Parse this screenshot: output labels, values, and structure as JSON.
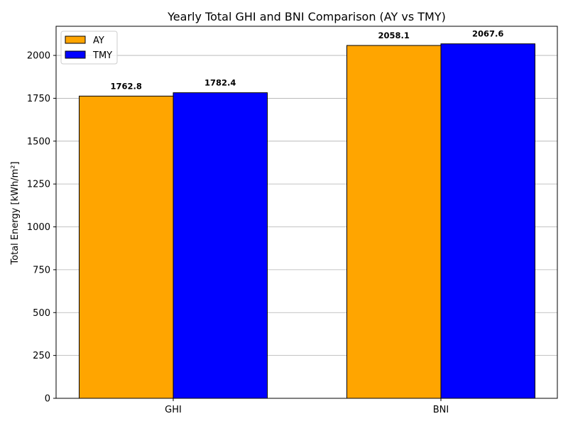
{
  "chart_data": {
    "type": "bar",
    "title": "Yearly Total GHI and BNI Comparison (AY vs TMY)",
    "xlabel": "",
    "ylabel": "Total Energy [kWh/m²]",
    "categories": [
      "GHI",
      "BNI"
    ],
    "series": [
      {
        "name": "AY",
        "color": "#ffa500",
        "values": [
          1762.8,
          2058.1
        ],
        "labels": [
          "1762.8",
          "2058.1"
        ]
      },
      {
        "name": "TMY",
        "color": "#0000ff",
        "values": [
          1782.4,
          2067.6
        ],
        "labels": [
          "1782.4",
          "2067.6"
        ]
      }
    ],
    "ylim": [
      0,
      2170
    ],
    "yticks": [
      0,
      250,
      500,
      750,
      1000,
      1250,
      1500,
      1750,
      2000
    ],
    "ytick_labels": [
      "0",
      "250",
      "500",
      "750",
      "1000",
      "1250",
      "1500",
      "1750",
      "2000"
    ],
    "grid": "y-axis",
    "legend_position": "top-left",
    "bar_edge_color": "#000000"
  }
}
